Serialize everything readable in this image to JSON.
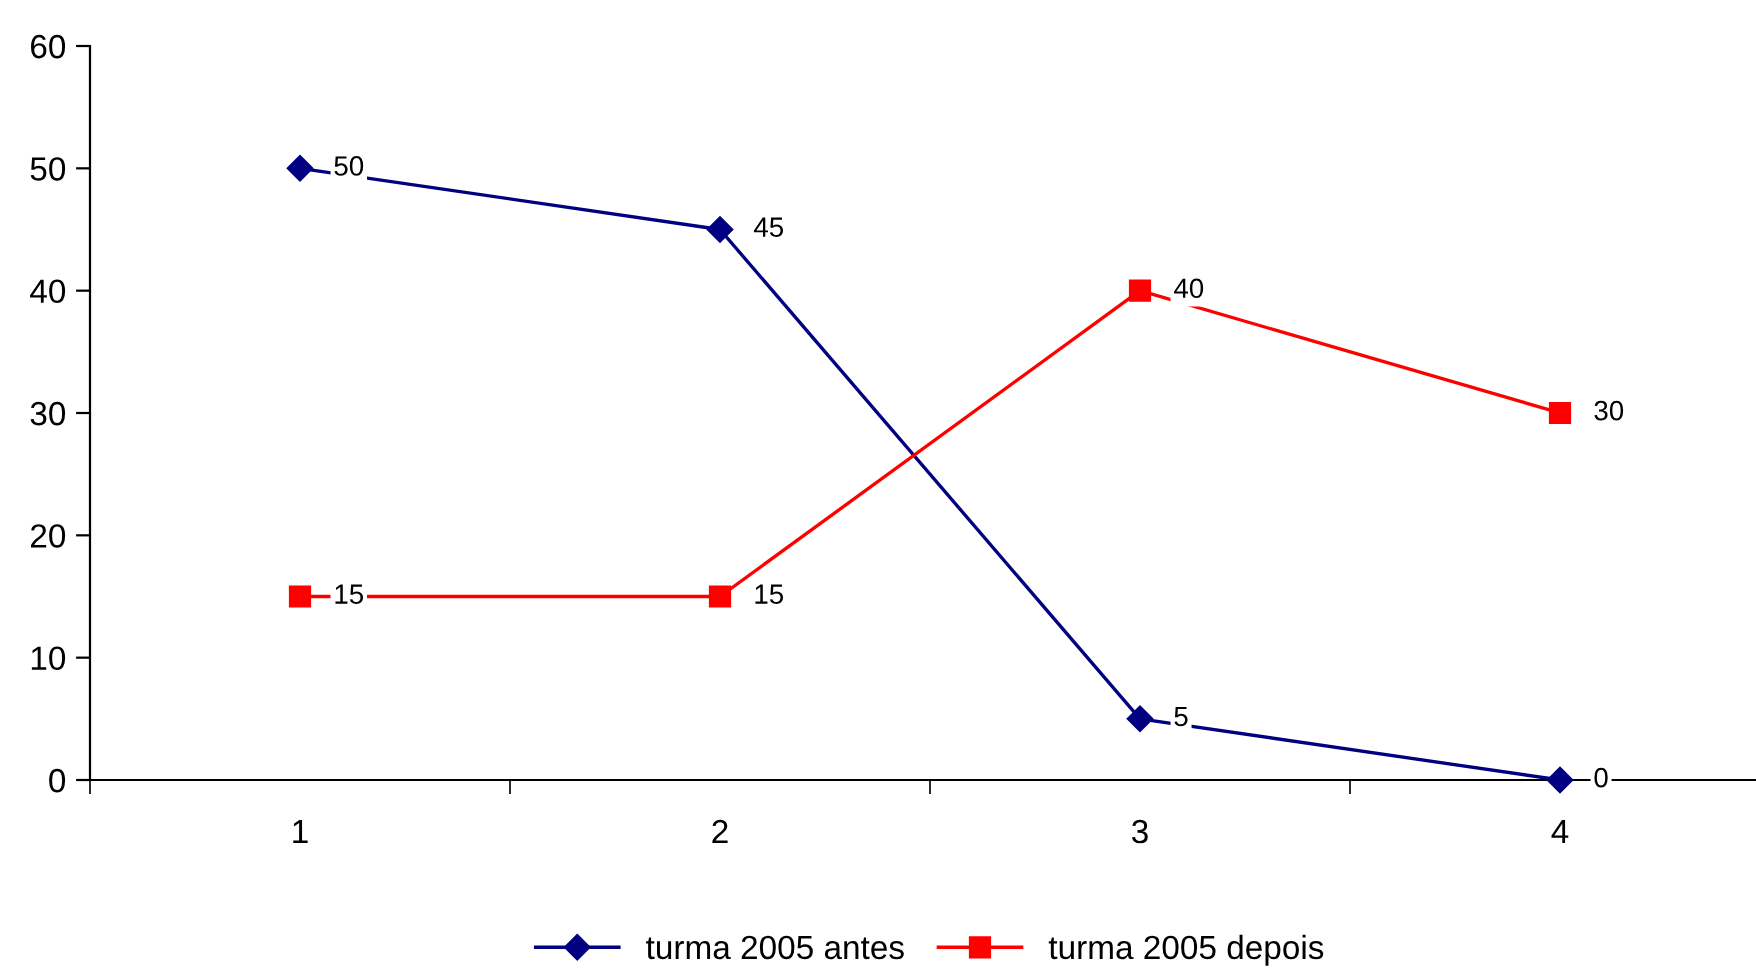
{
  "chart_data": {
    "type": "line",
    "categories": [
      "1",
      "2",
      "3",
      "4"
    ],
    "series": [
      {
        "name": "turma 2005 antes",
        "color": "#000080",
        "marker": "diamond",
        "values": [
          50,
          45,
          5,
          0
        ]
      },
      {
        "name": "turma 2005 depois",
        "color": "#ff0000",
        "marker": "square",
        "values": [
          15,
          15,
          40,
          30
        ]
      }
    ],
    "ylim": [
      0,
      60
    ],
    "yticks": [
      0,
      10,
      20,
      30,
      40,
      50,
      60
    ],
    "grid": false,
    "legend": "bottom",
    "data_labels": true,
    "line_style": "solid"
  }
}
